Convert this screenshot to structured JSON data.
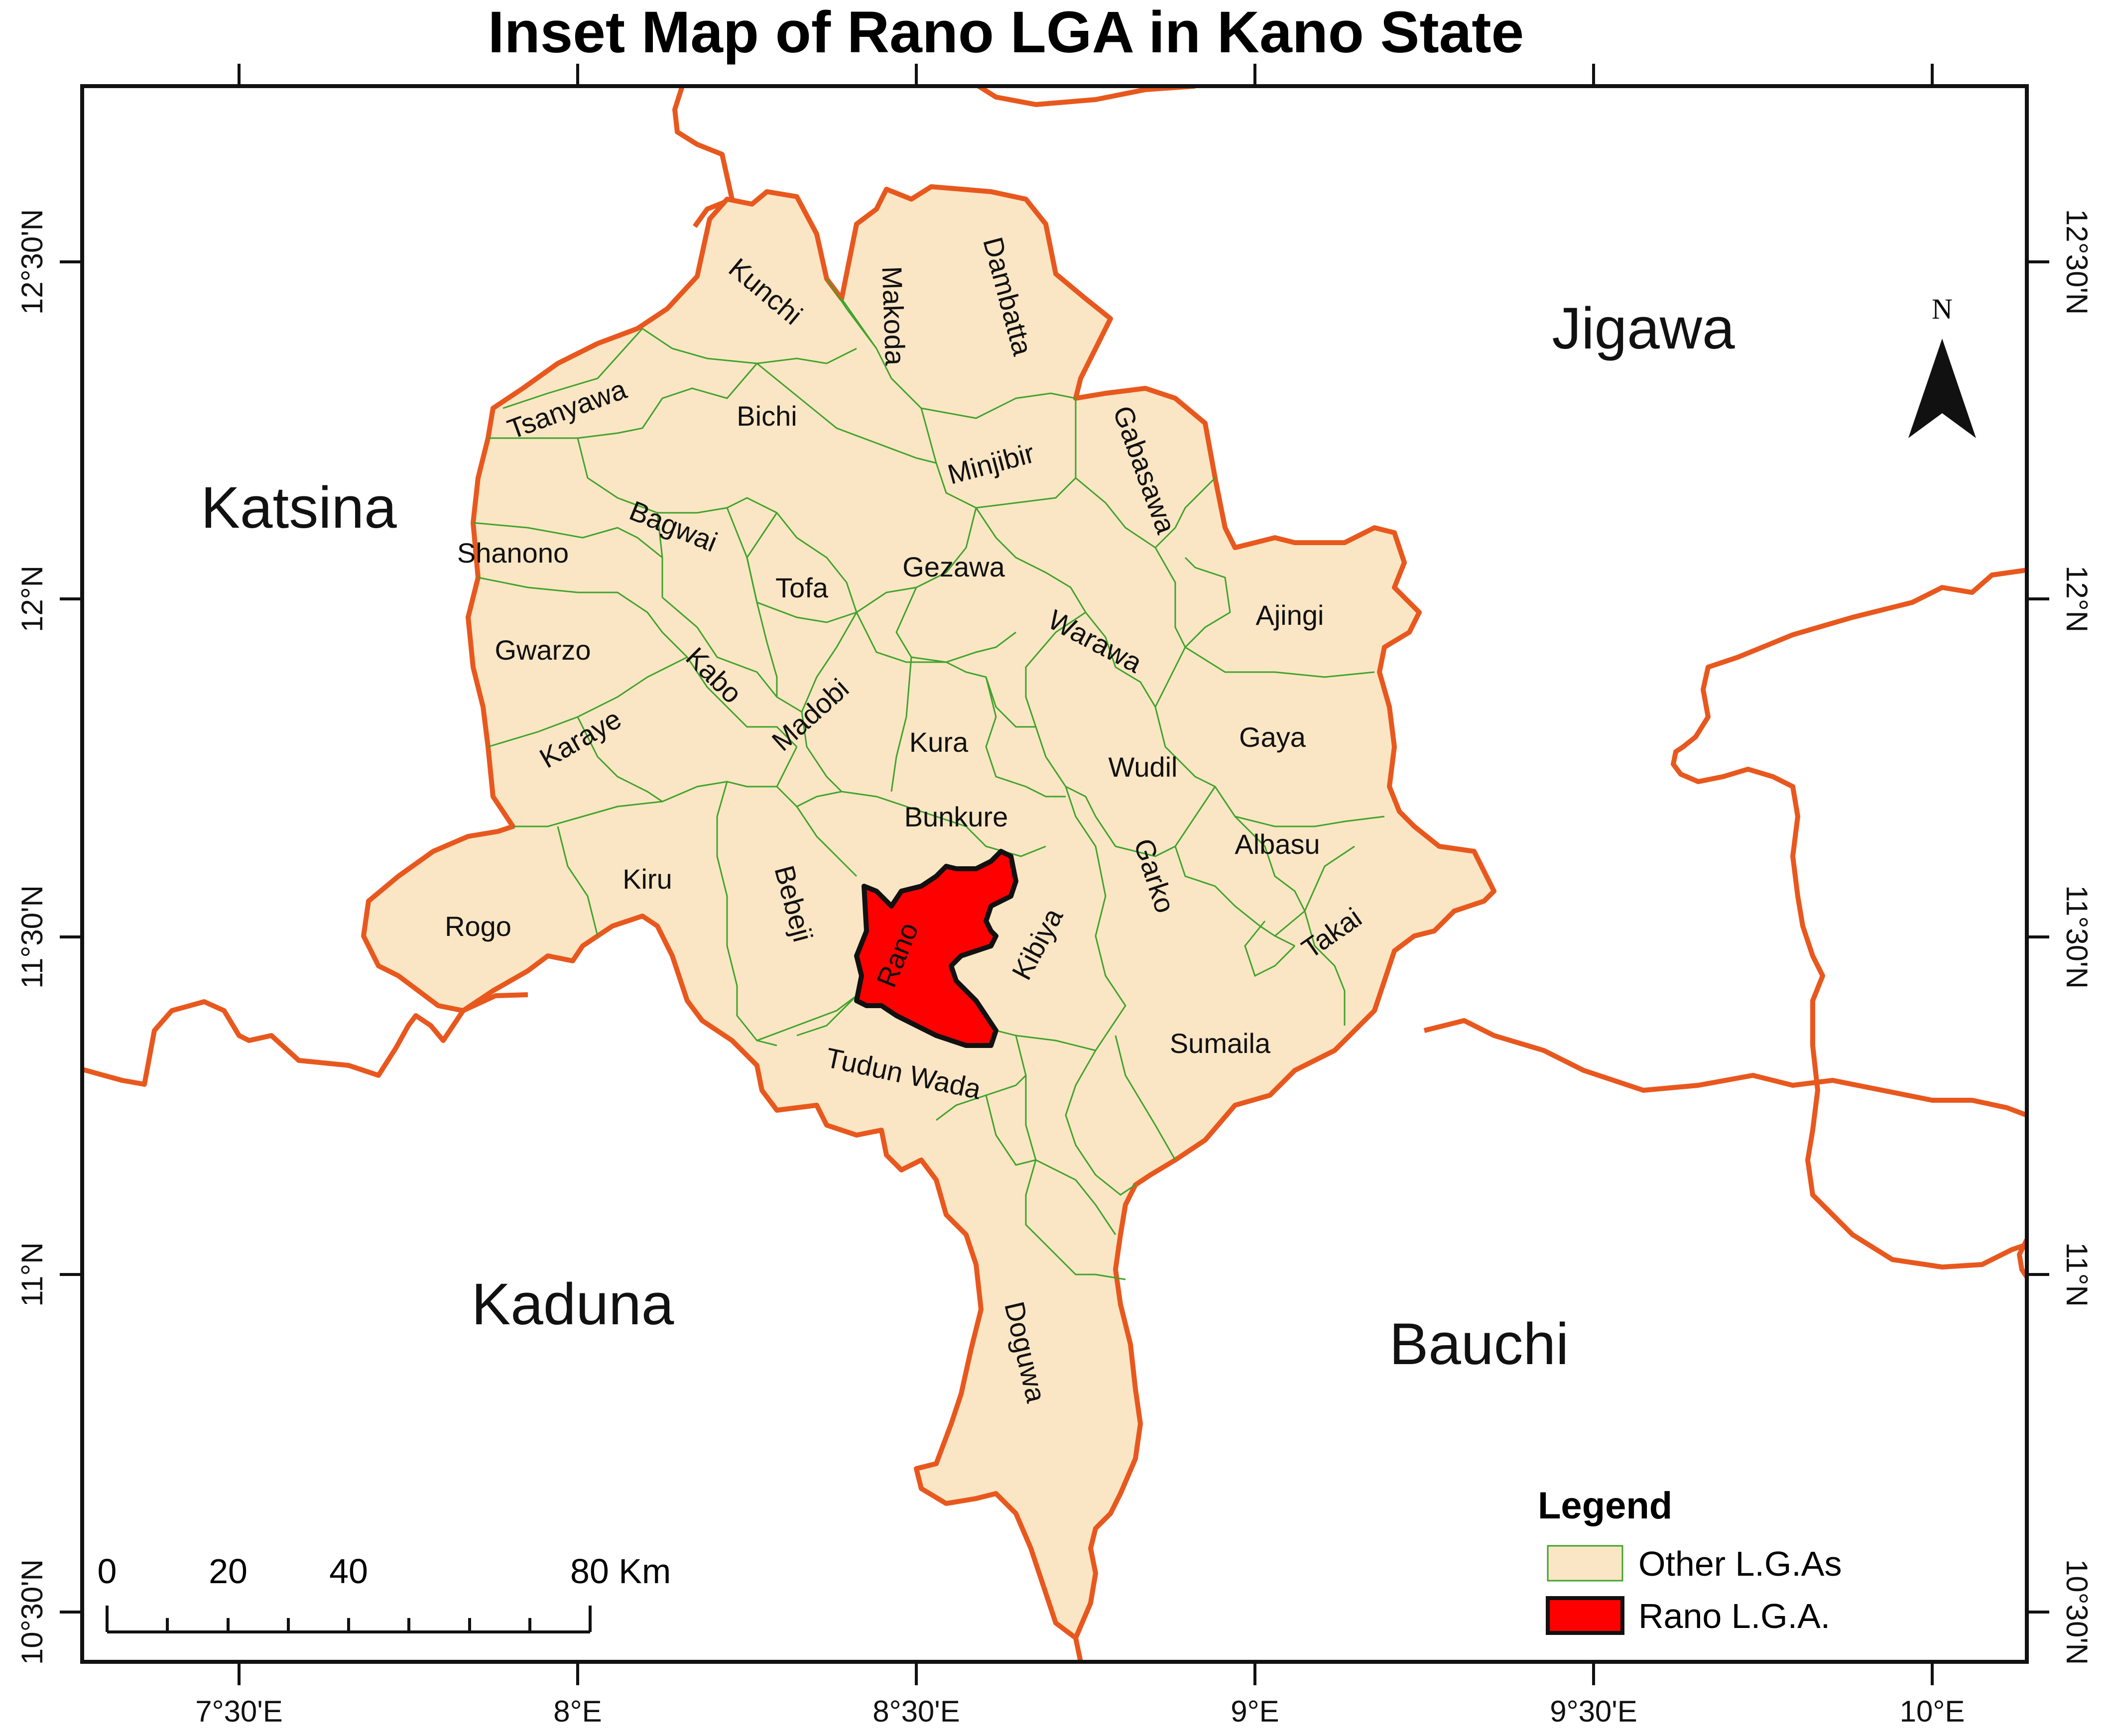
{
  "title": "Inset Map of Rano LGA  in Kano State",
  "colors": {
    "state_fill": "#fae6c4",
    "state_boundary": "#e8581e",
    "lga_boundary": "#3fa32b",
    "rano_fill": "#ff0000",
    "rano_outline": "#111111",
    "frame": "#111111"
  },
  "axes": {
    "longitude_labels": [
      "7°30'E",
      "8°E",
      "8°30'E",
      "9°E",
      "9°30'E",
      "10°E"
    ],
    "latitude_labels": [
      "12°30'N",
      "12°N",
      "11°30'N",
      "11°N",
      "10°30'N"
    ]
  },
  "states": [
    "Katsina",
    "Jigawa",
    "Kaduna",
    "Bauchi"
  ],
  "lgas": [
    "Kunchi",
    "Makoda",
    "Dambatta",
    "Tsanyawa",
    "Bichi",
    "Minjibir",
    "Gabasawa",
    "Bagwai",
    "Shanono",
    "Tofa",
    "Gezawa",
    "Ajingi",
    "Gwarzo",
    "Kabo",
    "Warawa",
    "Madobi",
    "Kura",
    "Gaya",
    "Karaye",
    "Wudil",
    "Bunkure",
    "Albasu",
    "Kiru",
    "Bebeji",
    "Garko",
    "Rogo",
    "Rano",
    "Kibiya",
    "Takai",
    "Sumaila",
    "Tudun Wada",
    "Doguwa"
  ],
  "north_arrow": {
    "label": "N",
    "icon": "north-arrow-icon"
  },
  "legend": {
    "title": "Legend",
    "items": [
      {
        "label": "Other L.G.As",
        "swatch": "state_fill"
      },
      {
        "label": "Rano L.G.A.",
        "swatch": "rano_fill"
      }
    ]
  },
  "scale_bar": {
    "ticks": [
      "0",
      "20",
      "40",
      "80 Km"
    ]
  }
}
